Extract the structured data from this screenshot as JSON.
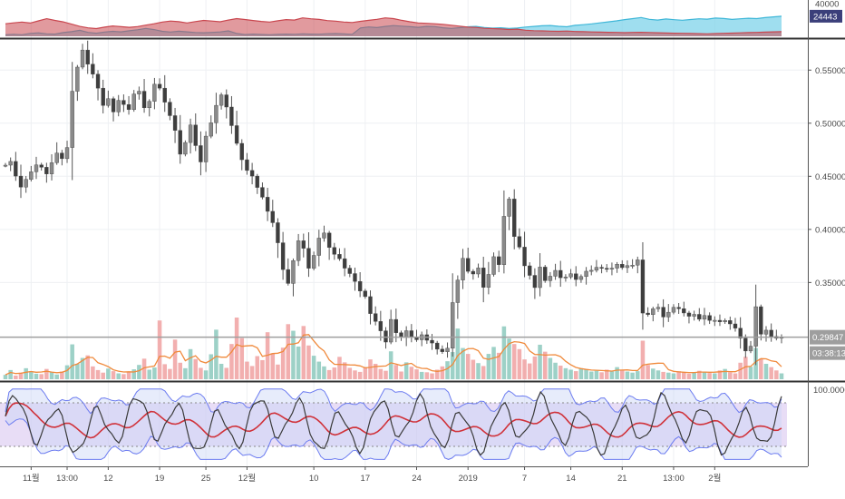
{
  "chart_data": {
    "type": "line",
    "subtype": "candlestick-price-chart-with-volume-and-indicator-panes",
    "title": "",
    "panes": {
      "top_area": {
        "type": "area",
        "series": [
          {
            "name": "",
            "color": "#3fb7d8"
          },
          {
            "name": "",
            "color": "#c9474f"
          }
        ],
        "ticks": [
          "40000"
        ],
        "last_value_tag": "24443",
        "ylim": [
          0,
          42000
        ],
        "values_a": [
          1800,
          2400,
          1900,
          3500,
          4200,
          3000,
          2600,
          4500,
          5600,
          7300,
          4800,
          3800,
          5200,
          6100,
          5400,
          6700,
          8000,
          9600,
          8200,
          6100,
          5200,
          6200,
          5400,
          4600,
          4300,
          4800,
          5300,
          6600,
          3400,
          2100,
          2700,
          2200,
          1900,
          2300,
          2700,
          2400,
          3000,
          2600,
          2500,
          3100,
          3300,
          2900,
          2400,
          10200,
          11400,
          10600,
          12100,
          13000,
          12400,
          11700,
          10900,
          12100,
          11800,
          10400,
          9600,
          10500,
          11600,
          12100,
          10700,
          9900,
          10400,
          9600,
          10100,
          11300,
          12000,
          12800,
          13100,
          12200,
          11600,
          13400,
          14200,
          15100,
          16400,
          17600,
          18800,
          20300,
          21600,
          22900,
          20700,
          19800,
          21100,
          20200,
          19600,
          20400,
          21300,
          20900,
          22200,
          21700,
          20600,
          21300,
          22000,
          21600,
          22800,
          23600,
          24443
        ],
        "values_b": [
          15200,
          16400,
          17300,
          16100,
          18800,
          21400,
          19300,
          17600,
          14800,
          12100,
          10300,
          9400,
          11200,
          12600,
          11700,
          10900,
          11800,
          13600,
          15200,
          17400,
          18600,
          17800,
          16200,
          17900,
          19300,
          18600,
          17700,
          19800,
          21600,
          20400,
          19200,
          18100,
          17300,
          18900,
          20300,
          19800,
          22400,
          21300,
          20600,
          19100,
          18500,
          17400,
          16800,
          18200,
          19400,
          20700,
          22400,
          21600,
          19400,
          17700,
          16300,
          15800,
          15200,
          14600,
          13500,
          12400,
          11200,
          10800,
          9700,
          9400,
          8900,
          8300,
          8700,
          7400,
          6900,
          6600,
          6300,
          6100,
          6400,
          5900,
          5600,
          5300,
          5100,
          4900,
          4700,
          4400,
          4700,
          4900,
          4600,
          4300,
          4000,
          3800,
          3600,
          3400,
          3200,
          3000,
          3300,
          3600,
          3900,
          4200,
          4500,
          4800,
          5100,
          5400,
          5600
        ]
      },
      "price": {
        "type": "candlestick",
        "ylim": [
          0.27,
          0.575
        ],
        "ticks": [
          "0.55000",
          "0.50000",
          "0.45000",
          "0.40000",
          "0.35000"
        ],
        "last_price_label": "0.29847",
        "timer_label": "03:38:13",
        "close": [
          0.4605,
          0.464,
          0.4502,
          0.4398,
          0.4471,
          0.4542,
          0.4607,
          0.4585,
          0.4522,
          0.4628,
          0.4719,
          0.4666,
          0.4771,
          0.5301,
          0.5528,
          0.5689,
          0.5556,
          0.5462,
          0.533,
          0.5167,
          0.5231,
          0.5106,
          0.5215,
          0.5176,
          0.5128,
          0.5275,
          0.5301,
          0.5145,
          0.5206,
          0.5367,
          0.533,
          0.5198,
          0.5071,
          0.4932,
          0.4708,
          0.4818,
          0.4983,
          0.4789,
          0.4635,
          0.4878,
          0.5004,
          0.5168,
          0.5267,
          0.5152,
          0.4977,
          0.481,
          0.4656,
          0.4555,
          0.4502,
          0.4395,
          0.4303,
          0.417,
          0.4063,
          0.3874,
          0.3622,
          0.3491,
          0.3706,
          0.3893,
          0.3822,
          0.3634,
          0.3755,
          0.3918,
          0.3966,
          0.383,
          0.3765,
          0.3724,
          0.3635,
          0.3584,
          0.351,
          0.342,
          0.3367,
          0.3207,
          0.3133,
          0.3045,
          0.2939,
          0.3152,
          0.3027,
          0.2983,
          0.3046,
          0.2987,
          0.2961,
          0.3008,
          0.2956,
          0.293,
          0.2872,
          0.2848,
          0.2881,
          0.3311,
          0.3523,
          0.3727,
          0.3605,
          0.358,
          0.3637,
          0.3454,
          0.3576,
          0.3743,
          0.3668,
          0.4123,
          0.4286,
          0.3933,
          0.3833,
          0.3657,
          0.3567,
          0.3452,
          0.3645,
          0.3517,
          0.3559,
          0.3614,
          0.3545,
          0.3552,
          0.3582,
          0.3528,
          0.3556,
          0.3606,
          0.3615,
          0.3643,
          0.3634,
          0.3625,
          0.3635,
          0.3672,
          0.364,
          0.3659,
          0.3663,
          0.3713,
          0.3212,
          0.3198,
          0.3252,
          0.3267,
          0.3175,
          0.322,
          0.3266,
          0.3253,
          0.3213,
          0.3182,
          0.32,
          0.3154,
          0.3189,
          0.3143,
          0.3144,
          0.313,
          0.3142,
          0.311,
          0.307,
          0.2975,
          0.2855,
          0.29,
          0.3272,
          0.3013,
          0.3051,
          0.2992,
          0.2975,
          0.2985
        ]
      },
      "volume": {
        "type": "bar",
        "colors": {
          "up": "#8cc9bd",
          "down": "#f0a1a1",
          "ma": "#f08a3c"
        },
        "values": [
          1.2,
          2.5,
          1.0,
          1.8,
          3.0,
          2.2,
          1.5,
          1.4,
          2.8,
          1.9,
          1.3,
          2.1,
          3.8,
          9.5,
          4.2,
          5.8,
          6.5,
          3.5,
          2.5,
          1.8,
          2.9,
          2.2,
          1.6,
          1.4,
          2.0,
          2.7,
          3.9,
          5.6,
          2.6,
          3.2,
          16.0,
          4.1,
          2.8,
          10.8,
          4.5,
          3.0,
          8.2,
          5.5,
          3.1,
          2.4,
          6.8,
          13.5,
          4.2,
          3.1,
          9.6,
          16.8,
          11.2,
          4.8,
          3.6,
          6.3,
          5.2,
          12.8,
          7.1,
          4.0,
          8.6,
          15.0,
          13.2,
          8.9,
          14.5,
          9.2,
          6.4,
          4.8,
          3.5,
          2.5,
          3.2,
          6.1,
          4.6,
          3.1,
          2.4,
          2.0,
          3.3,
          5.4,
          4.2,
          2.8,
          2.3,
          7.6,
          3.9,
          2.1,
          4.6,
          3.4,
          2.7,
          2.0,
          1.9,
          1.6,
          2.6,
          3.5,
          4.9,
          7.4,
          13.8,
          8.5,
          6.9,
          5.3,
          4.4,
          3.6,
          6.9,
          8.8,
          7.2,
          14.4,
          11.1,
          9.6,
          8.2,
          5.4,
          4.3,
          6.2,
          9.4,
          7.5,
          5.8,
          4.5,
          3.7,
          3.0,
          2.6,
          2.2,
          3.0,
          2.6,
          2.1,
          2.3,
          1.9,
          2.6,
          2.2,
          3.3,
          2.5,
          2.1,
          1.8,
          2.2,
          10.5,
          3.9,
          2.9,
          2.4,
          2.0,
          1.8,
          1.6,
          2.2,
          1.9,
          1.5,
          1.9,
          2.3,
          2.1,
          1.7,
          1.6,
          2.4,
          2.8,
          1.9,
          1.6,
          4.5,
          6.1,
          3.4,
          8.5,
          5.6,
          4.2,
          3.3,
          2.4,
          1.6
        ]
      },
      "oscillator": {
        "type": "line",
        "ticks": [
          "100.0000"
        ],
        "ylim": [
          0,
          100
        ],
        "band_upper": 80,
        "band_lower": 20,
        "colors": {
          "osc": "#3a3a3a",
          "signal": "#d0323a",
          "bands": "#6c7cf0",
          "fill": "#cdb3ea"
        }
      }
    },
    "x_ticks": [
      "11월",
      "13:00",
      "12",
      "19",
      "25",
      "12월",
      "10",
      "17",
      "24",
      "2019",
      "7",
      "14",
      "21",
      "13:00",
      "2월"
    ],
    "x_tick_index": [
      5,
      12,
      20,
      30,
      39,
      47,
      60,
      70,
      80,
      90,
      101,
      110,
      120,
      130,
      138
    ]
  }
}
